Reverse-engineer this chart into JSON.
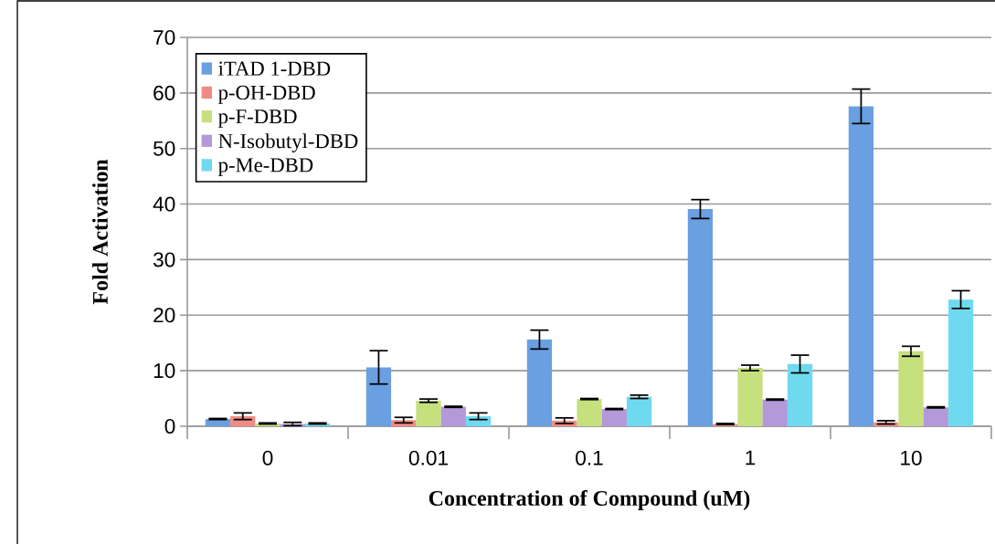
{
  "chart_data": {
    "type": "bar",
    "xlabel": "Concentration of Compound (uM)",
    "ylabel": "Fold Activation",
    "categories": [
      "0",
      "0.01",
      "0.1",
      "1",
      "10"
    ],
    "series": [
      {
        "name": "iTAD 1-DBD",
        "color": "#6a9fe2",
        "values": [
          1.3,
          10.6,
          15.6,
          39.1,
          57.6
        ],
        "errors": [
          0.1,
          3.0,
          1.7,
          1.7,
          3.1
        ]
      },
      {
        "name": "p-OH-DBD",
        "color": "#f08c84",
        "values": [
          1.8,
          1.1,
          1.0,
          0.4,
          0.7
        ],
        "errors": [
          0.6,
          0.5,
          0.5,
          0.1,
          0.3
        ]
      },
      {
        "name": "p-F-DBD",
        "color": "#c6e07e",
        "values": [
          0.5,
          4.6,
          4.9,
          10.5,
          13.5
        ],
        "errors": [
          0.1,
          0.3,
          0.1,
          0.5,
          0.9
        ]
      },
      {
        "name": "N-Isobutyl-DBD",
        "color": "#b399d8",
        "values": [
          0.4,
          3.5,
          3.1,
          4.8,
          3.4
        ],
        "errors": [
          0.3,
          0.1,
          0.1,
          0.1,
          0.1
        ]
      },
      {
        "name": "p-Me-DBD",
        "color": "#6fdaef",
        "values": [
          0.5,
          1.8,
          5.3,
          11.2,
          22.8
        ],
        "errors": [
          0.1,
          0.6,
          0.3,
          1.6,
          1.6
        ]
      }
    ],
    "ylim": [
      0,
      70
    ],
    "yticks": [
      0,
      10,
      20,
      30,
      40,
      50,
      60,
      70
    ],
    "grid": "y",
    "legend": "top left"
  }
}
